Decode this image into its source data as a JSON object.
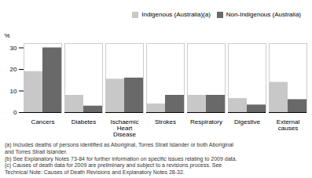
{
  "chart_data": {
    "type": "bar",
    "categories": [
      "Cancers",
      "Diabetes",
      "Ischaemic\nHeart\nDisease",
      "Strokes",
      "Respiratory",
      "Digestive",
      "External\ncauses"
    ],
    "series": [
      {
        "name": "Indigenous (Australia)(a)",
        "color": "#c8c8c8",
        "values": [
          19,
          8,
          15.5,
          4,
          8,
          6.5,
          14
        ]
      },
      {
        "name": "Non-Indigenous (Australia)",
        "color": "#696969",
        "values": [
          30,
          3,
          16,
          8,
          8,
          3.5,
          6
        ]
      }
    ],
    "ylabel": "%",
    "ylim": [
      0,
      32
    ],
    "yticks": [
      0,
      10,
      20,
      30
    ],
    "grid": false,
    "legend": "upper right",
    "caption": "(a) Includes deaths of persons identified as Aboriginal, Torres Strait Islander or both Aboriginal\nand Torres Strait Islander.\n(b) See Explanatory Notes 73-84 for further information on specific issues relating to 2009 data.\n(c) Causes of death data for 2009 are preliminary and subject to a revisions process. See\nTechnical Note: Causes of Death Revisions and Explanatory Notes 28-32."
  }
}
